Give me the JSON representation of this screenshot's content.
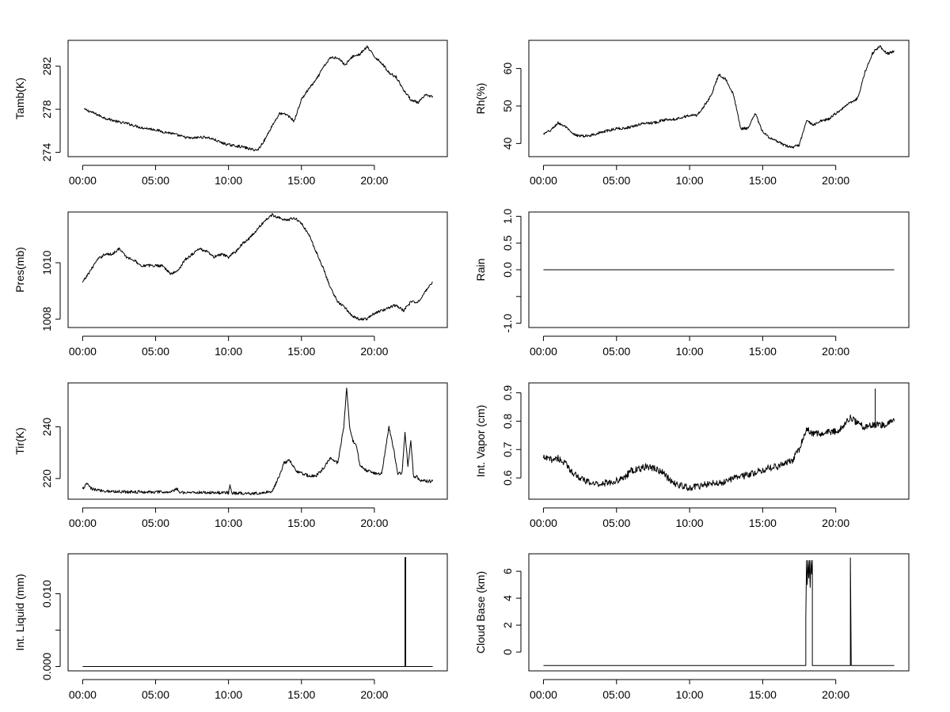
{
  "chart_data": [
    {
      "type": "line",
      "id": "tamb",
      "ylabel": "Tamb(K)",
      "xlim": [
        -1,
        25
      ],
      "ylim": [
        273.6,
        284.4
      ],
      "x_ticks": [
        "00:00",
        "05:00",
        "10:00",
        "15:00",
        "20:00"
      ],
      "y_ticks": [
        {
          "value": 274,
          "label": "274"
        },
        {
          "value": 278,
          "label": "278"
        },
        {
          "value": 282,
          "label": "282"
        }
      ],
      "x": [
        0.1,
        0.5,
        1,
        1.5,
        2,
        2.5,
        3,
        3.5,
        4,
        4.5,
        5,
        5.5,
        6,
        6.5,
        7,
        7.5,
        8,
        8.5,
        9,
        9.5,
        10,
        10.5,
        11,
        11.5,
        12,
        12.5,
        13,
        13.5,
        14,
        14.5,
        15,
        15.5,
        16,
        16.5,
        17,
        17.5,
        18,
        18.5,
        19,
        19.5,
        20,
        20.5,
        21,
        21.5,
        22,
        22.5,
        23,
        23.5,
        24
      ],
      "values": [
        278.0,
        277.8,
        277.5,
        277.2,
        277.0,
        276.8,
        276.7,
        276.5,
        276.3,
        276.2,
        276.1,
        275.9,
        275.8,
        275.6,
        275.4,
        275.3,
        275.4,
        275.4,
        275.2,
        274.9,
        274.7,
        274.6,
        274.5,
        274.3,
        274.2,
        275.2,
        276.5,
        277.6,
        277.5,
        276.9,
        278.9,
        279.9,
        280.7,
        281.9,
        282.8,
        282.8,
        282.1,
        282.9,
        283.1,
        283.8,
        282.9,
        282.3,
        281.4,
        281.0,
        279.8,
        278.9,
        278.6,
        279.3,
        279.2
      ],
      "noise": 0.12
    },
    {
      "type": "line",
      "id": "rh",
      "ylabel": "Rh(%)",
      "xlim": [
        -1,
        25
      ],
      "ylim": [
        36.5,
        67.5
      ],
      "x_ticks": [
        "00:00",
        "05:00",
        "10:00",
        "15:00",
        "20:00"
      ],
      "y_ticks": [
        {
          "value": 40,
          "label": "40"
        },
        {
          "value": 50,
          "label": "50"
        },
        {
          "value": 60,
          "label": "60"
        }
      ],
      "x": [
        0,
        0.5,
        1,
        1.5,
        2,
        2.5,
        3,
        3.5,
        4,
        4.5,
        5,
        5.5,
        6,
        6.5,
        7,
        7.5,
        8,
        8.5,
        9,
        9.5,
        10,
        10.5,
        11,
        11.5,
        12,
        12.5,
        13,
        13.5,
        14,
        14.5,
        15,
        15.5,
        16,
        16.5,
        17,
        17.5,
        18,
        18.5,
        19,
        19.5,
        20,
        20.5,
        21,
        21.5,
        22,
        22.5,
        23,
        23.5,
        24
      ],
      "values": [
        42.5,
        43.5,
        45.5,
        44.5,
        42.5,
        42,
        42,
        42.5,
        43,
        43.5,
        44,
        44,
        44.5,
        45,
        45.5,
        45.5,
        46,
        46.5,
        46.5,
        47,
        47.5,
        47.5,
        50,
        53,
        58.5,
        57,
        53,
        44,
        44,
        48,
        43,
        41.5,
        40.5,
        39.5,
        39,
        39.5,
        46,
        45,
        46,
        46.5,
        48,
        49.5,
        51,
        52,
        59,
        64,
        66,
        64,
        64.5
      ],
      "noise": 0.35
    },
    {
      "type": "line",
      "id": "pres",
      "ylabel": "Pres(mb)",
      "xlim": [
        -1,
        25
      ],
      "ylim": [
        1007.7,
        1011.8
      ],
      "x_ticks": [
        "00:00",
        "05:00",
        "10:00",
        "15:00",
        "20:00"
      ],
      "y_ticks": [
        {
          "value": 1008,
          "label": "1008"
        },
        {
          "value": 1010,
          "label": "1010"
        }
      ],
      "x": [
        0,
        0.5,
        1,
        1.5,
        2,
        2.5,
        3,
        3.5,
        4,
        4.5,
        5,
        5.5,
        6,
        6.5,
        7,
        7.5,
        8,
        8.5,
        9,
        9.5,
        10,
        10.5,
        11,
        11.5,
        12,
        12.5,
        13,
        13.5,
        14,
        14.5,
        15,
        15.5,
        16,
        16.5,
        17,
        17.5,
        18,
        18.5,
        19,
        19.5,
        20,
        20.5,
        21,
        21.5,
        22,
        22.5,
        23,
        23.5,
        24
      ],
      "values": [
        1009.3,
        1009.7,
        1010.1,
        1010.3,
        1010.3,
        1010.5,
        1010.2,
        1010.1,
        1009.9,
        1009.9,
        1009.9,
        1009.9,
        1009.6,
        1009.7,
        1010.1,
        1010.3,
        1010.5,
        1010.4,
        1010.2,
        1010.3,
        1010.2,
        1010.4,
        1010.7,
        1010.9,
        1011.2,
        1011.5,
        1011.7,
        1011.6,
        1011.5,
        1011.6,
        1011.4,
        1011.0,
        1010.4,
        1009.8,
        1009.1,
        1008.6,
        1008.4,
        1008.1,
        1008.0,
        1008.0,
        1008.2,
        1008.3,
        1008.4,
        1008.5,
        1008.3,
        1008.6,
        1008.6,
        1009.0,
        1009.3
      ],
      "noise": 0.05
    },
    {
      "type": "line",
      "id": "rain",
      "ylabel": "Rain",
      "xlim": [
        -1,
        25
      ],
      "ylim": [
        -1.08,
        1.08
      ],
      "x_ticks": [
        "00:00",
        "05:00",
        "10:00",
        "15:00",
        "20:00"
      ],
      "y_ticks": [
        {
          "value": -1.0,
          "label": "-1.0"
        },
        {
          "value": -0.5,
          "label": ""
        },
        {
          "value": 0.0,
          "label": "0.0"
        },
        {
          "value": 0.5,
          "label": "0.5"
        },
        {
          "value": 1.0,
          "label": "1.0"
        }
      ],
      "x": [
        0,
        24
      ],
      "values": [
        0,
        0
      ],
      "noise": 0
    },
    {
      "type": "line",
      "id": "tir",
      "ylabel": "Tir(K)",
      "xlim": [
        -1,
        25
      ],
      "ylim": [
        212,
        257
      ],
      "x_ticks": [
        "00:00",
        "05:00",
        "10:00",
        "15:00",
        "20:00"
      ],
      "y_ticks": [
        {
          "value": 220,
          "label": "220"
        },
        {
          "value": 240,
          "label": "240"
        }
      ],
      "x": [
        0,
        0.3,
        0.6,
        1,
        2,
        4,
        6,
        6.5,
        6.6,
        8,
        10,
        10.1,
        10.2,
        10.4,
        12,
        13,
        13.4,
        13.8,
        14.2,
        14.6,
        15,
        15.5,
        16,
        16.5,
        17,
        17.5,
        17.9,
        18.1,
        18.3,
        18.5,
        18.8,
        19,
        19.5,
        20,
        20.5,
        21,
        21.3,
        21.6,
        21.9,
        22.1,
        22.3,
        22.5,
        22.7,
        22.9,
        23.1,
        23.5,
        24
      ],
      "values": [
        216,
        218,
        216,
        215.5,
        215,
        214.8,
        214.7,
        216,
        214.7,
        214.6,
        214.5,
        218,
        214.5,
        214.3,
        214.3,
        215,
        220,
        226,
        227,
        223,
        222,
        221,
        221,
        224,
        228,
        226,
        240,
        255,
        240,
        235,
        232,
        225,
        223,
        222,
        222,
        240,
        232,
        222,
        222,
        238,
        225,
        235,
        220,
        221,
        219,
        219,
        219
      ],
      "noise": 0.6
    },
    {
      "type": "line",
      "id": "vapor",
      "ylabel": "Int. Vapor (cm)",
      "xlim": [
        -1,
        25
      ],
      "ylim": [
        0.525,
        0.935
      ],
      "x_ticks": [
        "00:00",
        "05:00",
        "10:00",
        "15:00",
        "20:00"
      ],
      "y_ticks": [
        {
          "value": 0.6,
          "label": "0.6"
        },
        {
          "value": 0.7,
          "label": "0.7"
        },
        {
          "value": 0.8,
          "label": "0.8"
        },
        {
          "value": 0.9,
          "label": "0.9"
        }
      ],
      "x": [
        0,
        0.5,
        1,
        1.5,
        2,
        2.5,
        3,
        3.5,
        4,
        4.5,
        5,
        5.5,
        6,
        6.5,
        7,
        7.5,
        8,
        8.5,
        9,
        9.5,
        10,
        10.5,
        11,
        11.5,
        12,
        12.5,
        13,
        13.5,
        14,
        14.5,
        15,
        15.5,
        16,
        16.5,
        17,
        17.5,
        18,
        18.5,
        19,
        19.5,
        20,
        20.5,
        21,
        21.5,
        22,
        22.5,
        23,
        23.5,
        24
      ],
      "values": [
        0.67,
        0.665,
        0.67,
        0.65,
        0.62,
        0.6,
        0.585,
        0.58,
        0.58,
        0.585,
        0.59,
        0.6,
        0.625,
        0.63,
        0.64,
        0.635,
        0.625,
        0.6,
        0.58,
        0.57,
        0.565,
        0.57,
        0.575,
        0.58,
        0.58,
        0.59,
        0.6,
        0.605,
        0.61,
        0.62,
        0.63,
        0.635,
        0.64,
        0.65,
        0.66,
        0.7,
        0.77,
        0.755,
        0.755,
        0.76,
        0.765,
        0.78,
        0.815,
        0.79,
        0.78,
        0.79,
        0.785,
        0.79,
        0.8
      ],
      "noise": 0.012,
      "spikes": [
        {
          "x": 22.7,
          "value": 0.915
        }
      ]
    },
    {
      "type": "line",
      "id": "liquid",
      "ylabel": "Int. Liquid (mm)",
      "xlim": [
        -1,
        25
      ],
      "ylim": [
        -0.0006,
        0.0155
      ],
      "x_ticks": [
        "00:00",
        "05:00",
        "10:00",
        "15:00",
        "20:00"
      ],
      "y_ticks": [
        {
          "value": 0.0,
          "label": "0.000"
        },
        {
          "value": 0.005,
          "label": ""
        },
        {
          "value": 0.01,
          "label": "0.010"
        }
      ],
      "x": [
        0,
        22.1,
        22.1,
        22.15,
        22.15,
        24
      ],
      "values": [
        0,
        0,
        0.015,
        0.015,
        0,
        0
      ],
      "noise": 0
    },
    {
      "type": "line",
      "id": "cloud",
      "ylabel": "Cloud Base (km)",
      "xlim": [
        -1,
        25
      ],
      "ylim": [
        -1.4,
        7.3
      ],
      "x_ticks": [
        "00:00",
        "05:00",
        "10:00",
        "15:00",
        "20:00"
      ],
      "y_ticks": [
        {
          "value": 0,
          "label": "0"
        },
        {
          "value": 2,
          "label": "2"
        },
        {
          "value": 4,
          "label": "4"
        },
        {
          "value": 6,
          "label": "6"
        }
      ],
      "x": [
        0,
        17.95,
        17.95,
        18.0,
        18.05,
        18.1,
        18.15,
        18.2,
        18.25,
        18.3,
        18.35,
        18.4,
        18.4,
        21.0,
        21.0,
        21.03,
        21.06,
        21.06,
        24
      ],
      "values": [
        -1,
        -1,
        2.5,
        6.8,
        5.0,
        6.8,
        5.5,
        6.8,
        4.8,
        6.8,
        5.8,
        6.8,
        -1,
        -1,
        7.0,
        3.0,
        -1,
        -1,
        -1
      ],
      "noise": 0
    }
  ]
}
